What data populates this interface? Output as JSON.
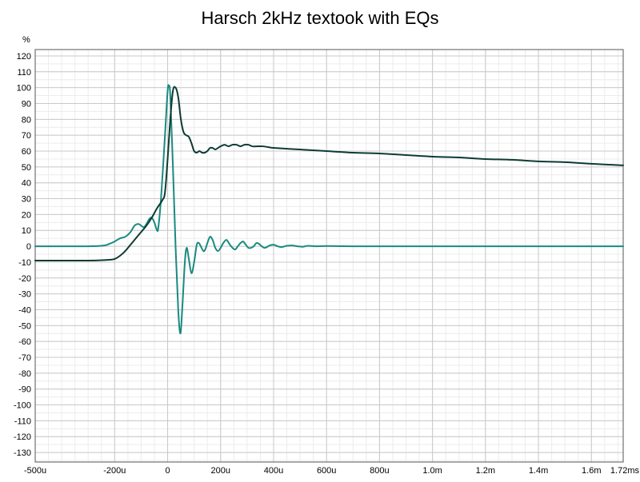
{
  "chart_data": {
    "type": "line",
    "title": "Harsch 2kHz textook with EQs",
    "ylabel": "%",
    "xlabel": "",
    "xlim": [
      -500,
      1720
    ],
    "ylim": [
      -136,
      124
    ],
    "x_unit": "microseconds",
    "grid": true,
    "x_ticks": [
      {
        "value": -500,
        "label": "-500u"
      },
      {
        "value": -200,
        "label": "-200u"
      },
      {
        "value": 0,
        "label": "0"
      },
      {
        "value": 200,
        "label": "200u"
      },
      {
        "value": 400,
        "label": "400u"
      },
      {
        "value": 600,
        "label": "600u"
      },
      {
        "value": 800,
        "label": "800u"
      },
      {
        "value": 1000,
        "label": "1.0m"
      },
      {
        "value": 1200,
        "label": "1.2m"
      },
      {
        "value": 1400,
        "label": "1.4m"
      },
      {
        "value": 1600,
        "label": "1.6m"
      },
      {
        "value": 1720,
        "label": "1.72ms"
      }
    ],
    "y_ticks": [
      120,
      110,
      100,
      90,
      80,
      70,
      60,
      50,
      40,
      30,
      20,
      10,
      0,
      -10,
      -20,
      -30,
      -40,
      -50,
      -60,
      -70,
      -80,
      -90,
      -100,
      -110,
      -120,
      -130
    ],
    "series": [
      {
        "color": "#1a8a80",
        "points": [
          [
            -500,
            0
          ],
          [
            -300,
            0
          ],
          [
            -240,
            0.5
          ],
          [
            -220,
            1.5
          ],
          [
            -200,
            3
          ],
          [
            -180,
            5
          ],
          [
            -160,
            6
          ],
          [
            -140,
            9
          ],
          [
            -125,
            13
          ],
          [
            -110,
            14
          ],
          [
            -100,
            13
          ],
          [
            -90,
            12
          ],
          [
            -80,
            14
          ],
          [
            -70,
            17
          ],
          [
            -60,
            18
          ],
          [
            -50,
            15
          ],
          [
            -40,
            10
          ],
          [
            -35,
            12
          ],
          [
            -25,
            30
          ],
          [
            -10,
            70
          ],
          [
            0,
            98
          ],
          [
            5,
            101
          ],
          [
            10,
            95
          ],
          [
            20,
            50
          ],
          [
            30,
            0
          ],
          [
            40,
            -40
          ],
          [
            48,
            -55
          ],
          [
            55,
            -40
          ],
          [
            65,
            -10
          ],
          [
            72,
            -1
          ],
          [
            80,
            -8
          ],
          [
            90,
            -17
          ],
          [
            100,
            -10
          ],
          [
            110,
            1
          ],
          [
            118,
            2
          ],
          [
            125,
            0
          ],
          [
            135,
            -3
          ],
          [
            142,
            -2
          ],
          [
            150,
            2
          ],
          [
            160,
            6
          ],
          [
            170,
            4
          ],
          [
            180,
            -1
          ],
          [
            190,
            -3
          ],
          [
            200,
            -1
          ],
          [
            210,
            2
          ],
          [
            222,
            4
          ],
          [
            235,
            1
          ],
          [
            245,
            -1
          ],
          [
            255,
            -2
          ],
          [
            265,
            0
          ],
          [
            275,
            2
          ],
          [
            285,
            3
          ],
          [
            295,
            1
          ],
          [
            305,
            -1
          ],
          [
            315,
            -1
          ],
          [
            325,
            0
          ],
          [
            335,
            2
          ],
          [
            345,
            1.5
          ],
          [
            355,
            0
          ],
          [
            365,
            -1
          ],
          [
            375,
            -0.5
          ],
          [
            385,
            0.5
          ],
          [
            400,
            1
          ],
          [
            415,
            0
          ],
          [
            430,
            -0.5
          ],
          [
            450,
            0.3
          ],
          [
            470,
            0.5
          ],
          [
            490,
            0
          ],
          [
            510,
            -0.3
          ],
          [
            530,
            0.3
          ],
          [
            560,
            0
          ],
          [
            600,
            0.2
          ],
          [
            700,
            0
          ],
          [
            800,
            0
          ],
          [
            900,
            0
          ],
          [
            1000,
            0
          ],
          [
            1200,
            0
          ],
          [
            1400,
            0
          ],
          [
            1600,
            0
          ],
          [
            1720,
            0
          ]
        ]
      },
      {
        "color": "#0d3b33",
        "points": [
          [
            -500,
            -9
          ],
          [
            -300,
            -9
          ],
          [
            -220,
            -8.5
          ],
          [
            -200,
            -8
          ],
          [
            -180,
            -6
          ],
          [
            -160,
            -3
          ],
          [
            -140,
            1
          ],
          [
            -120,
            5
          ],
          [
            -100,
            9
          ],
          [
            -80,
            13
          ],
          [
            -60,
            18
          ],
          [
            -40,
            24
          ],
          [
            -20,
            29
          ],
          [
            -10,
            34
          ],
          [
            0,
            55
          ],
          [
            10,
            80
          ],
          [
            20,
            98
          ],
          [
            30,
            100
          ],
          [
            40,
            94
          ],
          [
            50,
            80
          ],
          [
            60,
            72
          ],
          [
            70,
            70
          ],
          [
            80,
            69
          ],
          [
            90,
            65
          ],
          [
            100,
            60
          ],
          [
            110,
            59
          ],
          [
            120,
            60
          ],
          [
            130,
            59
          ],
          [
            140,
            59
          ],
          [
            150,
            60
          ],
          [
            160,
            62
          ],
          [
            170,
            62
          ],
          [
            180,
            61
          ],
          [
            190,
            62
          ],
          [
            200,
            63
          ],
          [
            215,
            64
          ],
          [
            230,
            63
          ],
          [
            245,
            64
          ],
          [
            260,
            64
          ],
          [
            275,
            63
          ],
          [
            290,
            64
          ],
          [
            305,
            64
          ],
          [
            320,
            63
          ],
          [
            340,
            63
          ],
          [
            360,
            63
          ],
          [
            380,
            62.5
          ],
          [
            400,
            62
          ],
          [
            500,
            61
          ],
          [
            600,
            60
          ],
          [
            700,
            59
          ],
          [
            800,
            58.5
          ],
          [
            900,
            57.5
          ],
          [
            1000,
            56.5
          ],
          [
            1100,
            56
          ],
          [
            1200,
            55
          ],
          [
            1300,
            54.5
          ],
          [
            1400,
            53.5
          ],
          [
            1500,
            53
          ],
          [
            1600,
            52
          ],
          [
            1720,
            51
          ]
        ]
      }
    ]
  }
}
